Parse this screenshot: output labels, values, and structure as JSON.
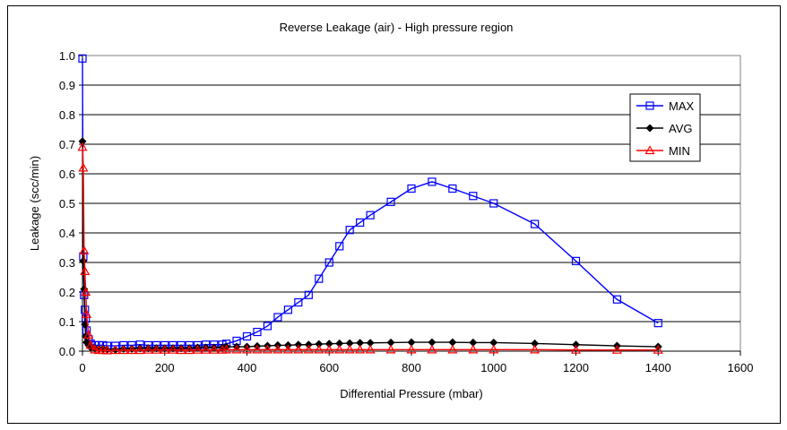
{
  "chart_data": {
    "type": "line",
    "title": "Reverse Leakage (air) - High pressure region",
    "xlabel": "Differential Pressure (mbar)",
    "ylabel": "Leakage (scc/min)",
    "xlim": [
      0,
      1600
    ],
    "ylim": [
      0,
      1.0
    ],
    "xticks": [
      "0",
      "200",
      "400",
      "600",
      "800",
      "1000",
      "1200",
      "1400",
      "1600"
    ],
    "yticks": [
      "0.0",
      "0.1",
      "0.2",
      "0.3",
      "0.4",
      "0.5",
      "0.6",
      "0.7",
      "0.8",
      "0.9",
      "1.0"
    ],
    "grid": "horizontal",
    "legend_position": "top-right",
    "series": [
      {
        "name": "MAX",
        "color": "#0000FF",
        "marker": "square",
        "x": [
          0,
          2,
          4,
          6,
          8,
          10,
          15,
          20,
          30,
          40,
          50,
          60,
          80,
          100,
          120,
          140,
          160,
          180,
          200,
          220,
          240,
          260,
          280,
          300,
          320,
          340,
          350,
          375,
          400,
          425,
          450,
          475,
          500,
          525,
          550,
          575,
          600,
          625,
          650,
          675,
          700,
          750,
          800,
          850,
          900,
          950,
          1000,
          1100,
          1200,
          1300,
          1400
        ],
        "y": [
          0.99,
          0.32,
          0.19,
          0.14,
          0.11,
          0.07,
          0.04,
          0.025,
          0.02,
          0.02,
          0.02,
          0.018,
          0.018,
          0.02,
          0.02,
          0.022,
          0.02,
          0.02,
          0.02,
          0.02,
          0.02,
          0.02,
          0.02,
          0.022,
          0.022,
          0.022,
          0.025,
          0.035,
          0.05,
          0.065,
          0.085,
          0.115,
          0.14,
          0.165,
          0.19,
          0.245,
          0.3,
          0.355,
          0.41,
          0.435,
          0.46,
          0.505,
          0.55,
          0.573,
          0.55,
          0.525,
          0.5,
          0.43,
          0.305,
          0.175,
          0.095
        ]
      },
      {
        "name": "AVG",
        "color": "#000000",
        "marker": "diamond",
        "x": [
          0,
          2,
          4,
          6,
          8,
          10,
          15,
          20,
          30,
          40,
          50,
          60,
          80,
          100,
          120,
          140,
          160,
          180,
          200,
          220,
          240,
          260,
          280,
          300,
          320,
          340,
          350,
          375,
          400,
          425,
          450,
          475,
          500,
          525,
          550,
          575,
          600,
          625,
          650,
          675,
          700,
          750,
          800,
          850,
          900,
          950,
          1000,
          1100,
          1200,
          1300,
          1400
        ],
        "y": [
          0.71,
          0.305,
          0.21,
          0.09,
          0.05,
          0.03,
          0.02,
          0.012,
          0.01,
          0.008,
          0.008,
          0.005,
          0.005,
          0.008,
          0.008,
          0.01,
          0.01,
          0.01,
          0.01,
          0.01,
          0.01,
          0.01,
          0.012,
          0.012,
          0.012,
          0.012,
          0.015,
          0.015,
          0.015,
          0.017,
          0.018,
          0.02,
          0.02,
          0.022,
          0.022,
          0.024,
          0.025,
          0.026,
          0.027,
          0.028,
          0.028,
          0.029,
          0.03,
          0.03,
          0.03,
          0.029,
          0.029,
          0.026,
          0.022,
          0.018,
          0.015
        ]
      },
      {
        "name": "MIN",
        "color": "#FF0000",
        "marker": "triangle",
        "x": [
          0,
          2,
          4,
          6,
          8,
          10,
          15,
          20,
          30,
          40,
          50,
          60,
          80,
          100,
          120,
          140,
          160,
          180,
          200,
          220,
          240,
          260,
          280,
          300,
          320,
          340,
          350,
          375,
          400,
          425,
          450,
          475,
          500,
          525,
          550,
          575,
          600,
          625,
          650,
          675,
          700,
          750,
          800,
          850,
          900,
          950,
          1000,
          1100,
          1200,
          1300,
          1400
        ],
        "y": [
          0.69,
          0.62,
          0.34,
          0.27,
          0.2,
          0.125,
          0.055,
          0.02,
          0.005,
          0.003,
          0.003,
          0.002,
          0.003,
          0.003,
          0.003,
          0.003,
          0.004,
          0.004,
          0.004,
          0.004,
          0.003,
          0.003,
          0.004,
          0.004,
          0.004,
          0.004,
          0.005,
          0.005,
          0.005,
          0.005,
          0.005,
          0.005,
          0.005,
          0.005,
          0.005,
          0.005,
          0.005,
          0.005,
          0.005,
          0.005,
          0.005,
          0.005,
          0.005,
          0.005,
          0.005,
          0.005,
          0.005,
          0.005,
          0.004,
          0.004,
          0.004
        ]
      }
    ]
  }
}
